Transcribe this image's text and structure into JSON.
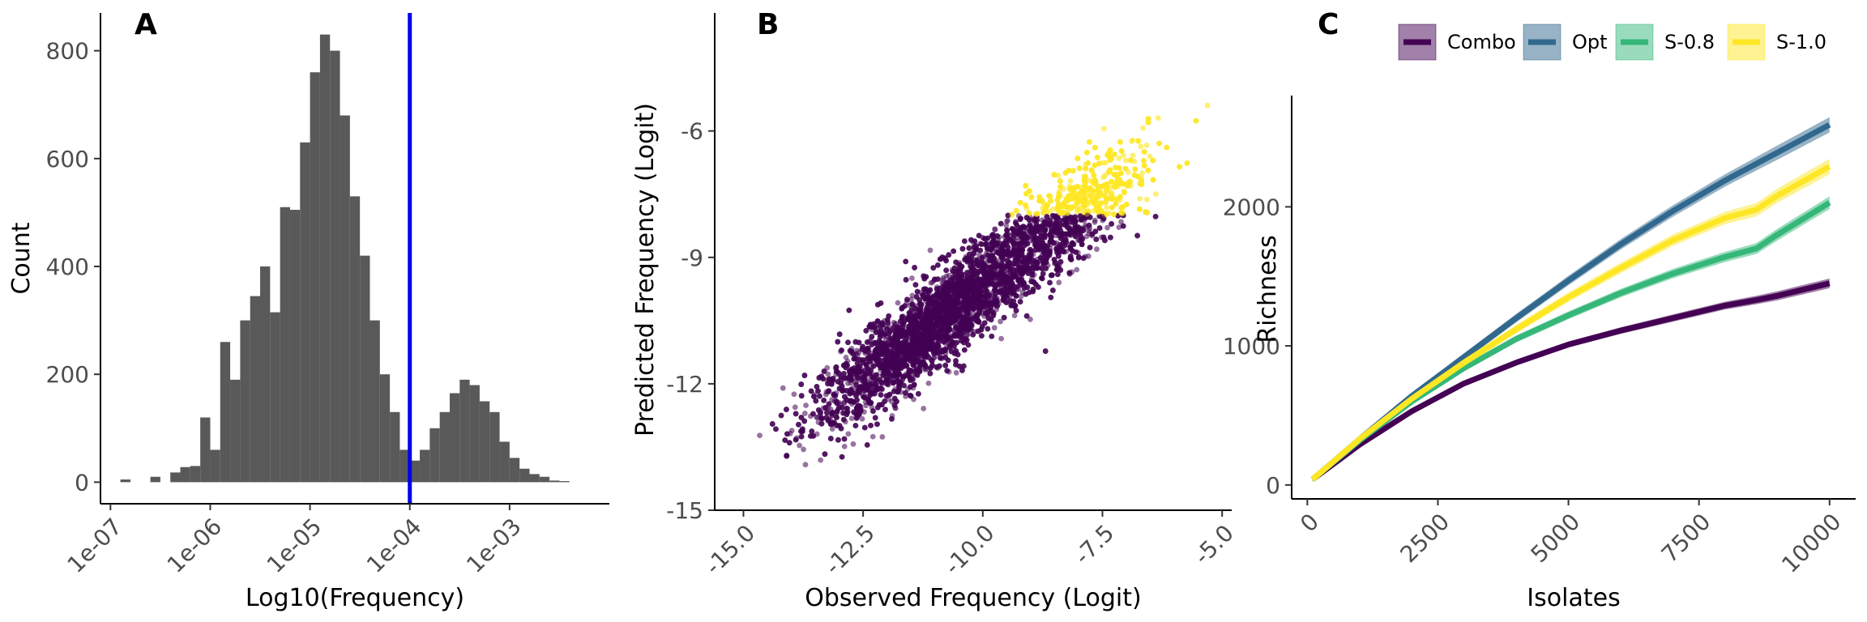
{
  "chart_data": [
    {
      "panel": "A",
      "type": "bar",
      "xlabel": "Log10(Frequency)",
      "ylabel": "Count",
      "xscale": "log",
      "x_ticks": [
        "1e-07",
        "1e-06",
        "1e-05",
        "1e-04",
        "1e-03"
      ],
      "y_ticks": [
        "0",
        "200",
        "400",
        "600",
        "800"
      ],
      "xlim_log10": [
        -7.1,
        -2.0
      ],
      "ylim": [
        -40,
        870
      ],
      "bins_log10": [
        -6.85,
        -6.55,
        -6.35,
        -6.25,
        -6.15,
        -6.05,
        -5.95,
        -5.85,
        -5.75,
        -5.65,
        -5.55,
        -5.45,
        -5.35,
        -5.25,
        -5.15,
        -5.05,
        -4.95,
        -4.85,
        -4.75,
        -4.65,
        -4.55,
        -4.45,
        -4.35,
        -4.25,
        -4.15,
        -4.05,
        -3.95,
        -3.85,
        -3.75,
        -3.65,
        -3.55,
        -3.45,
        -3.35,
        -3.25,
        -3.15,
        -3.05,
        -2.95,
        -2.85,
        -2.75,
        -2.65,
        -2.55,
        -2.45
      ],
      "bin_width_log10": 0.1,
      "counts": [
        5,
        10,
        18,
        28,
        30,
        120,
        60,
        260,
        190,
        300,
        345,
        400,
        315,
        510,
        505,
        630,
        760,
        830,
        800,
        680,
        530,
        420,
        300,
        200,
        130,
        60,
        40,
        60,
        100,
        130,
        165,
        190,
        180,
        150,
        130,
        75,
        45,
        25,
        15,
        10,
        3,
        2
      ],
      "vline": {
        "x_log10": -4.0,
        "color": "#0000ee"
      },
      "bar_color": "#595959"
    },
    {
      "panel": "B",
      "type": "scatter",
      "xlabel": "Observed Frequency (Logit)",
      "ylabel": "Predicted Frequency (Logit)",
      "x_ticks": [
        "-15.0",
        "-12.5",
        "-10.0",
        "-7.5",
        "-5.0"
      ],
      "y_ticks": [
        "-6",
        "-9",
        "-12",
        "-15"
      ],
      "xlim": [
        -15.6,
        -4.8
      ],
      "ylim": [
        -15.0,
        -3.2
      ],
      "threshold_y": -8.0,
      "n_points": 7000,
      "fit": {
        "slope": 0.85,
        "intercept": -1.2,
        "spread_sd": 0.55
      },
      "colors": {
        "above": "#fde725",
        "below": "#440154"
      }
    },
    {
      "panel": "C",
      "type": "line",
      "xlabel": "Isolates",
      "ylabel": "Richness",
      "x_ticks": [
        "0",
        "2500",
        "5000",
        "7500",
        "10000"
      ],
      "y_ticks": [
        "0",
        "1000",
        "2000"
      ],
      "xlim": [
        -300,
        10500
      ],
      "ylim": [
        -100,
        2800
      ],
      "x": [
        100,
        1000,
        2000,
        3000,
        4000,
        5000,
        6000,
        7000,
        8000,
        8600,
        9000,
        10000
      ],
      "series": [
        {
          "name": "Combo",
          "color": "#440154",
          "values": [
            40,
            290,
            530,
            730,
            880,
            1010,
            1110,
            1200,
            1290,
            1330,
            1360,
            1450
          ],
          "ribbon": 35
        },
        {
          "name": "Opt",
          "color": "#31688e",
          "values": [
            40,
            330,
            640,
            920,
            1200,
            1470,
            1730,
            1970,
            2190,
            2310,
            2390,
            2590
          ],
          "ribbon": 55
        },
        {
          "name": "S-0.8",
          "color": "#35b779",
          "values": [
            40,
            320,
            600,
            840,
            1050,
            1220,
            1380,
            1520,
            1640,
            1700,
            1800,
            2030
          ],
          "ribbon": 45
        },
        {
          "name": "S-1.0",
          "color": "#fde725",
          "values": [
            40,
            330,
            620,
            880,
            1120,
            1350,
            1560,
            1760,
            1920,
            1980,
            2080,
            2290
          ],
          "ribbon": 55
        }
      ]
    }
  ],
  "labels": {
    "a": "A",
    "b": "B",
    "c": "C"
  }
}
